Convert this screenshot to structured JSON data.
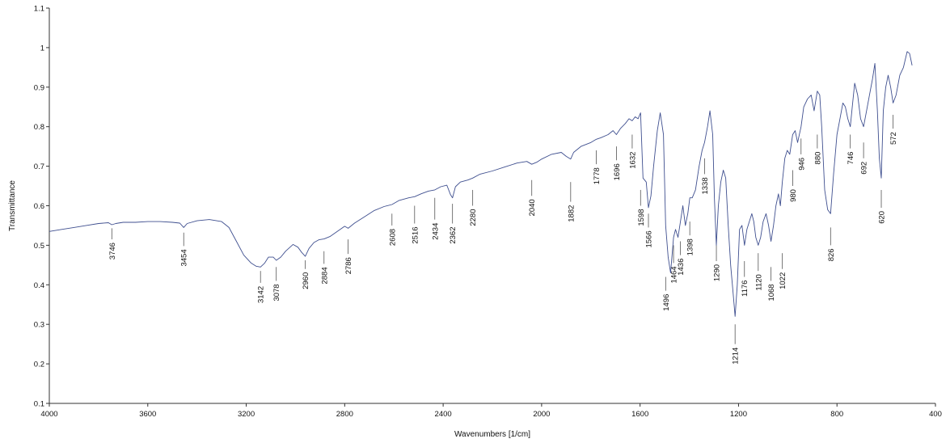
{
  "chart_data": {
    "type": "line",
    "xlabel": "Wavenumbers [1/cm]",
    "ylabel": "Transmittance",
    "xlim": [
      4000,
      400
    ],
    "x_reversed": true,
    "ylim": [
      0.1,
      1.1
    ],
    "x_ticks": [
      4000,
      3600,
      3200,
      2800,
      2400,
      2000,
      1600,
      1200,
      800,
      400
    ],
    "y_ticks": [
      "0.1",
      "0.2",
      "0.3",
      "0.4",
      "0.5",
      "0.6",
      "0.7",
      "0.8",
      "0.9",
      "1",
      "1.1"
    ],
    "grid": false,
    "colors": {
      "line": "#3f4f8f",
      "axis": "#333333",
      "peak_marker": "#555555"
    },
    "series": [
      {
        "x": [
          4000,
          3950,
          3900,
          3850,
          3800,
          3760,
          3746,
          3730,
          3700,
          3650,
          3600,
          3550,
          3500,
          3470,
          3454,
          3440,
          3400,
          3350,
          3300,
          3270,
          3240,
          3210,
          3180,
          3160,
          3142,
          3125,
          3110,
          3090,
          3078,
          3060,
          3040,
          3010,
          2990,
          2975,
          2960,
          2945,
          2925,
          2905,
          2884,
          2860,
          2830,
          2800,
          2786,
          2760,
          2720,
          2680,
          2640,
          2608,
          2580,
          2540,
          2516,
          2490,
          2460,
          2434,
          2410,
          2385,
          2370,
          2362,
          2350,
          2330,
          2300,
          2280,
          2250,
          2200,
          2150,
          2100,
          2060,
          2040,
          2020,
          2000,
          1960,
          1920,
          1900,
          1882,
          1870,
          1840,
          1800,
          1778,
          1760,
          1730,
          1710,
          1696,
          1680,
          1660,
          1645,
          1632,
          1620,
          1608,
          1598,
          1588,
          1575,
          1566,
          1556,
          1545,
          1530,
          1518,
          1505,
          1496,
          1486,
          1476,
          1464,
          1456,
          1446,
          1436,
          1426,
          1416,
          1406,
          1398,
          1388,
          1375,
          1360,
          1348,
          1338,
          1326,
          1316,
          1305,
          1298,
          1290,
          1282,
          1272,
          1262,
          1252,
          1242,
          1232,
          1222,
          1214,
          1205,
          1196,
          1186,
          1176,
          1166,
          1156,
          1146,
          1138,
          1130,
          1120,
          1110,
          1100,
          1088,
          1078,
          1068,
          1058,
          1048,
          1038,
          1030,
          1022,
          1012,
          1002,
          992,
          980,
          970,
          960,
          946,
          935,
          920,
          905,
          893,
          880,
          870,
          862,
          850,
          838,
          826,
          814,
          800,
          788,
          776,
          766,
          756,
          746,
          738,
          728,
          716,
          704,
          692,
          680,
          668,
          656,
          646,
          636,
          628,
          620,
          612,
          602,
          592,
          582,
          572,
          560,
          545,
          530,
          515,
          505,
          500,
          495
        ],
        "y": [
          0.535,
          0.54,
          0.545,
          0.55,
          0.555,
          0.557,
          0.552,
          0.555,
          0.558,
          0.558,
          0.56,
          0.56,
          0.558,
          0.556,
          0.545,
          0.555,
          0.562,
          0.565,
          0.56,
          0.545,
          0.51,
          0.475,
          0.455,
          0.447,
          0.445,
          0.455,
          0.47,
          0.47,
          0.462,
          0.47,
          0.485,
          0.502,
          0.495,
          0.482,
          0.472,
          0.492,
          0.507,
          0.514,
          0.516,
          0.522,
          0.535,
          0.548,
          0.543,
          0.556,
          0.572,
          0.588,
          0.598,
          0.603,
          0.613,
          0.62,
          0.623,
          0.63,
          0.637,
          0.64,
          0.648,
          0.652,
          0.628,
          0.62,
          0.648,
          0.66,
          0.665,
          0.67,
          0.68,
          0.688,
          0.698,
          0.708,
          0.712,
          0.705,
          0.71,
          0.718,
          0.73,
          0.735,
          0.725,
          0.718,
          0.735,
          0.75,
          0.76,
          0.768,
          0.772,
          0.78,
          0.79,
          0.78,
          0.795,
          0.808,
          0.82,
          0.815,
          0.825,
          0.82,
          0.835,
          0.67,
          0.66,
          0.595,
          0.625,
          0.7,
          0.79,
          0.835,
          0.78,
          0.55,
          0.47,
          0.43,
          0.52,
          0.54,
          0.52,
          0.56,
          0.6,
          0.55,
          0.58,
          0.62,
          0.62,
          0.64,
          0.7,
          0.74,
          0.76,
          0.8,
          0.84,
          0.78,
          0.62,
          0.5,
          0.6,
          0.66,
          0.69,
          0.67,
          0.55,
          0.45,
          0.38,
          0.32,
          0.4,
          0.54,
          0.55,
          0.5,
          0.54,
          0.56,
          0.58,
          0.56,
          0.52,
          0.5,
          0.52,
          0.56,
          0.58,
          0.55,
          0.51,
          0.55,
          0.6,
          0.63,
          0.6,
          0.66,
          0.72,
          0.74,
          0.73,
          0.78,
          0.79,
          0.76,
          0.8,
          0.85,
          0.87,
          0.88,
          0.84,
          0.89,
          0.88,
          0.8,
          0.64,
          0.59,
          0.58,
          0.68,
          0.78,
          0.82,
          0.86,
          0.85,
          0.82,
          0.8,
          0.85,
          0.91,
          0.88,
          0.82,
          0.8,
          0.84,
          0.88,
          0.92,
          0.96,
          0.84,
          0.72,
          0.67,
          0.84,
          0.9,
          0.93,
          0.9,
          0.86,
          0.88,
          0.93,
          0.95,
          0.99,
          0.985,
          0.97,
          0.955
        ]
      }
    ],
    "peaks": [
      {
        "label": "3746",
        "x": 3746,
        "y1": 0.515,
        "y2": 0.543
      },
      {
        "label": "3454",
        "x": 3454,
        "y1": 0.498,
        "y2": 0.532
      },
      {
        "label": "3142",
        "x": 3142,
        "y1": 0.405,
        "y2": 0.435
      },
      {
        "label": "3078",
        "x": 3078,
        "y1": 0.41,
        "y2": 0.445
      },
      {
        "label": "2960",
        "x": 2960,
        "y1": 0.44,
        "y2": 0.462
      },
      {
        "label": "2884",
        "x": 2884,
        "y1": 0.453,
        "y2": 0.485
      },
      {
        "label": "2786",
        "x": 2786,
        "y1": 0.478,
        "y2": 0.515
      },
      {
        "label": "2608",
        "x": 2608,
        "y1": 0.55,
        "y2": 0.58
      },
      {
        "label": "2516",
        "x": 2516,
        "y1": 0.555,
        "y2": 0.6
      },
      {
        "label": "2434",
        "x": 2434,
        "y1": 0.565,
        "y2": 0.62
      },
      {
        "label": "2362",
        "x": 2362,
        "y1": 0.555,
        "y2": 0.605
      },
      {
        "label": "2280",
        "x": 2280,
        "y1": 0.6,
        "y2": 0.64
      },
      {
        "label": "2040",
        "x": 2040,
        "y1": 0.625,
        "y2": 0.665
      },
      {
        "label": "1882",
        "x": 1882,
        "y1": 0.61,
        "y2": 0.66
      },
      {
        "label": "1778",
        "x": 1778,
        "y1": 0.705,
        "y2": 0.74
      },
      {
        "label": "1696",
        "x": 1696,
        "y1": 0.715,
        "y2": 0.75
      },
      {
        "label": "1632",
        "x": 1632,
        "y1": 0.745,
        "y2": 0.78
      },
      {
        "label": "1598",
        "x": 1598,
        "y1": 0.6,
        "y2": 0.64
      },
      {
        "label": "1566",
        "x": 1566,
        "y1": 0.545,
        "y2": 0.58
      },
      {
        "label": "1496",
        "x": 1496,
        "y1": 0.385,
        "y2": 0.42
      },
      {
        "label": "1464",
        "x": 1464,
        "y1": 0.455,
        "y2": 0.5
      },
      {
        "label": "1436",
        "x": 1436,
        "y1": 0.475,
        "y2": 0.51
      },
      {
        "label": "1398",
        "x": 1398,
        "y1": 0.525,
        "y2": 0.56
      },
      {
        "label": "1338",
        "x": 1338,
        "y1": 0.68,
        "y2": 0.72
      },
      {
        "label": "1290",
        "x": 1290,
        "y1": 0.46,
        "y2": 0.5
      },
      {
        "label": "1214",
        "x": 1214,
        "y1": 0.25,
        "y2": 0.3
      },
      {
        "label": "1176",
        "x": 1176,
        "y1": 0.42,
        "y2": 0.46
      },
      {
        "label": "1120",
        "x": 1120,
        "y1": 0.435,
        "y2": 0.48
      },
      {
        "label": "1068",
        "x": 1068,
        "y1": 0.41,
        "y2": 0.445
      },
      {
        "label": "1022",
        "x": 1022,
        "y1": 0.44,
        "y2": 0.48
      },
      {
        "label": "980",
        "x": 980,
        "y1": 0.65,
        "y2": 0.69
      },
      {
        "label": "946",
        "x": 946,
        "y1": 0.73,
        "y2": 0.77
      },
      {
        "label": "880",
        "x": 880,
        "y1": 0.745,
        "y2": 0.78
      },
      {
        "label": "826",
        "x": 826,
        "y1": 0.5,
        "y2": 0.545
      },
      {
        "label": "746",
        "x": 746,
        "y1": 0.745,
        "y2": 0.78
      },
      {
        "label": "692",
        "x": 692,
        "y1": 0.72,
        "y2": 0.76
      },
      {
        "label": "620",
        "x": 620,
        "y1": 0.595,
        "y2": 0.64
      },
      {
        "label": "572",
        "x": 572,
        "y1": 0.795,
        "y2": 0.83
      }
    ]
  }
}
